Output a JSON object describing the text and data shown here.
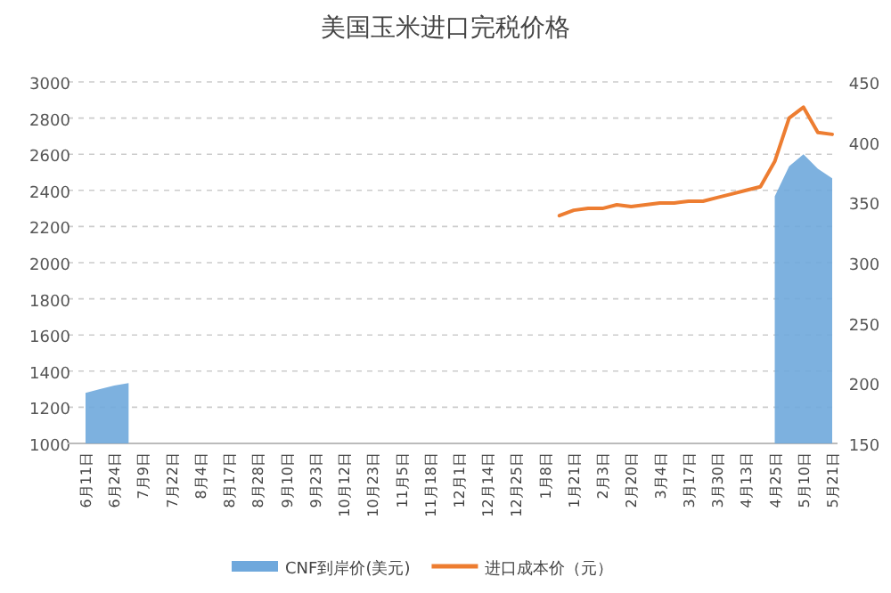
{
  "chart_data": {
    "type": "line",
    "title": "美国玉米进口完税价格",
    "categories": [
      "6月11日",
      null,
      "6月24日",
      null,
      "7月9日",
      null,
      "7月22日",
      null,
      "8月4日",
      null,
      "8月17日",
      null,
      "8月28日",
      null,
      "9月10日",
      null,
      "9月23日",
      null,
      "10月12日",
      null,
      "10月23日",
      null,
      "11月5日",
      null,
      "11月18日",
      null,
      "12月1日",
      null,
      "12月14日",
      null,
      "12月25日",
      null,
      "1月8日",
      null,
      "1月21日",
      null,
      "2月3日",
      null,
      "2月20日",
      null,
      "3月4日",
      null,
      "3月17日",
      null,
      "3月30日",
      null,
      "4月13日",
      null,
      "4月25日",
      null,
      "5月10日",
      null,
      "5月21日"
    ],
    "series": [
      {
        "name": "CNF到岸价(美元)",
        "type": "area",
        "axis": "y2",
        "color": "#6fa8dc",
        "values": [
          192,
          195,
          198,
          200,
          null,
          null,
          null,
          null,
          null,
          null,
          null,
          null,
          null,
          null,
          null,
          null,
          null,
          null,
          null,
          null,
          null,
          null,
          null,
          null,
          null,
          null,
          null,
          null,
          null,
          null,
          null,
          null,
          null,
          null,
          null,
          null,
          null,
          null,
          null,
          null,
          null,
          null,
          null,
          null,
          null,
          null,
          null,
          null,
          355,
          380,
          390,
          378,
          370
        ]
      },
      {
        "name": "进口成本价（元）",
        "color": "#ed7d31",
        "values": [
          null,
          null,
          null,
          null,
          null,
          null,
          null,
          null,
          null,
          null,
          null,
          null,
          null,
          null,
          null,
          null,
          null,
          null,
          null,
          null,
          null,
          null,
          null,
          null,
          null,
          null,
          null,
          null,
          null,
          null,
          null,
          null,
          null,
          2260,
          2290,
          2300,
          2300,
          2320,
          2310,
          2320,
          2330,
          2330,
          2340,
          2340,
          2360,
          2380,
          2400,
          2420,
          2560,
          2800,
          2860,
          2720,
          2710
        ]
      }
    ],
    "ylim": [
      1000,
      3000
    ],
    "yticks": [
      1000,
      1200,
      1400,
      1600,
      1800,
      2000,
      2200,
      2400,
      2600,
      2800,
      3000
    ],
    "y2lim": [
      150,
      450
    ],
    "y2ticks": [
      150,
      200,
      250,
      300,
      350,
      400,
      450
    ],
    "grid": "y",
    "legend": "bottom"
  }
}
